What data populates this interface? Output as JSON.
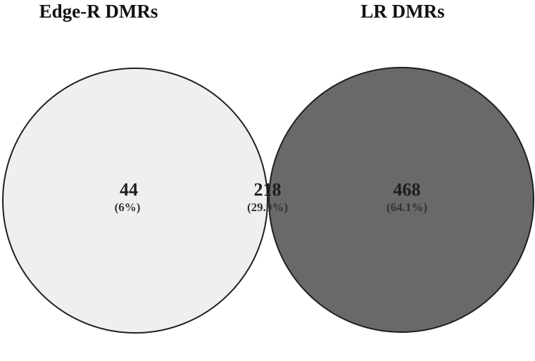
{
  "sets": {
    "left": {
      "title": "Edge-R DMRs",
      "fill": "#efefef"
    },
    "right": {
      "title": "LR DMRs",
      "fill": "#696969"
    },
    "overlap_fill": "#b9b9b9",
    "outline": "#1f1f1f"
  },
  "regions": {
    "left_only": {
      "count": "44",
      "percent": "(6%)"
    },
    "both": {
      "count": "218",
      "percent": "(29.9%)"
    },
    "right_only": {
      "count": "468",
      "percent": "(64.1%)"
    }
  }
}
